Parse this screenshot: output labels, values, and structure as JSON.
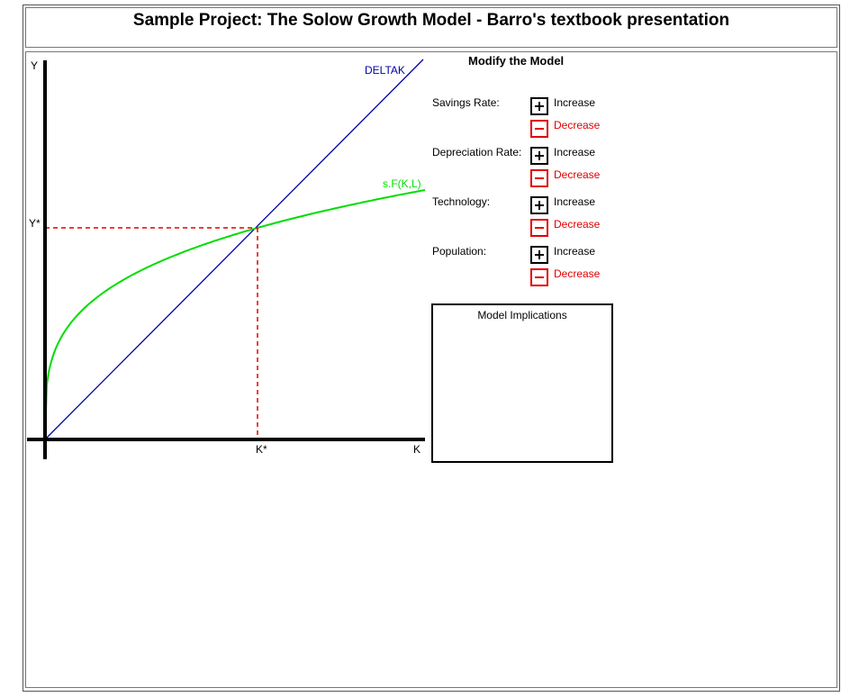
{
  "header": {
    "title": "Sample Project: The Solow Growth Model - Barro's textbook presentation"
  },
  "graph": {
    "y_axis_label": "Y",
    "x_axis_label": "K",
    "steady_y_label": "Y*",
    "steady_k_label": "K*",
    "line_label": "DELTAK",
    "curve_label": "s.F(K,L)",
    "colors": {
      "line": "#0000aa",
      "curve": "#00dd00",
      "guide": "#e00000",
      "axis": "#000000"
    }
  },
  "panel": {
    "title": "Modify the Model",
    "controls": [
      {
        "label": "Savings Rate:",
        "increase": "Increase",
        "decrease": "Decrease"
      },
      {
        "label": "Depreciation Rate:",
        "increase": "Increase",
        "decrease": "Decrease"
      },
      {
        "label": "Technology:",
        "increase": "Increase",
        "decrease": "Decrease"
      },
      {
        "label": "Population:",
        "increase": "Increase",
        "decrease": "Decrease"
      }
    ],
    "implications_title": "Model Implications"
  }
}
